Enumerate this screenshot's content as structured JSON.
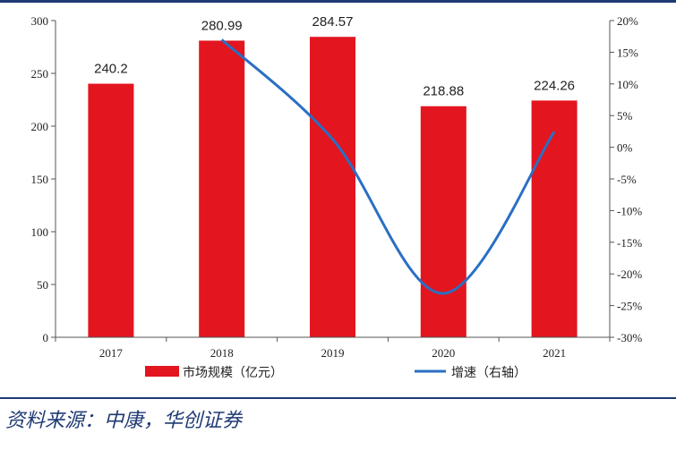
{
  "chart_data": {
    "type": "bar",
    "categories": [
      "2017",
      "2018",
      "2019",
      "2020",
      "2021"
    ],
    "series": [
      {
        "name": "市场规模（亿元）",
        "type": "bar",
        "axis": "left",
        "values": [
          240.2,
          280.99,
          284.57,
          218.88,
          224.26
        ],
        "data_labels": [
          "240.2",
          "280.99",
          "284.57",
          "218.88",
          "224.26"
        ],
        "color": "#e3151f"
      },
      {
        "name": "增速（右轴）",
        "type": "line",
        "axis": "right",
        "x": [
          "2018",
          "2019",
          "2020",
          "2021"
        ],
        "values": [
          16.98,
          1.27,
          -23.08,
          2.46
        ],
        "color": "#2a6fc4"
      }
    ],
    "y_left": {
      "ylim": [
        0,
        300
      ],
      "ticks": [
        "0",
        "50",
        "100",
        "150",
        "200",
        "250",
        "300"
      ]
    },
    "y_right": {
      "ylim": [
        -30,
        20
      ],
      "ticks": [
        "-30%",
        "-25%",
        "-20%",
        "-15%",
        "-10%",
        "-5%",
        "0%",
        "5%",
        "10%",
        "15%",
        "20%"
      ]
    },
    "legend": "bottom",
    "grid": false
  },
  "source": "资料来源：中康，华创证券"
}
